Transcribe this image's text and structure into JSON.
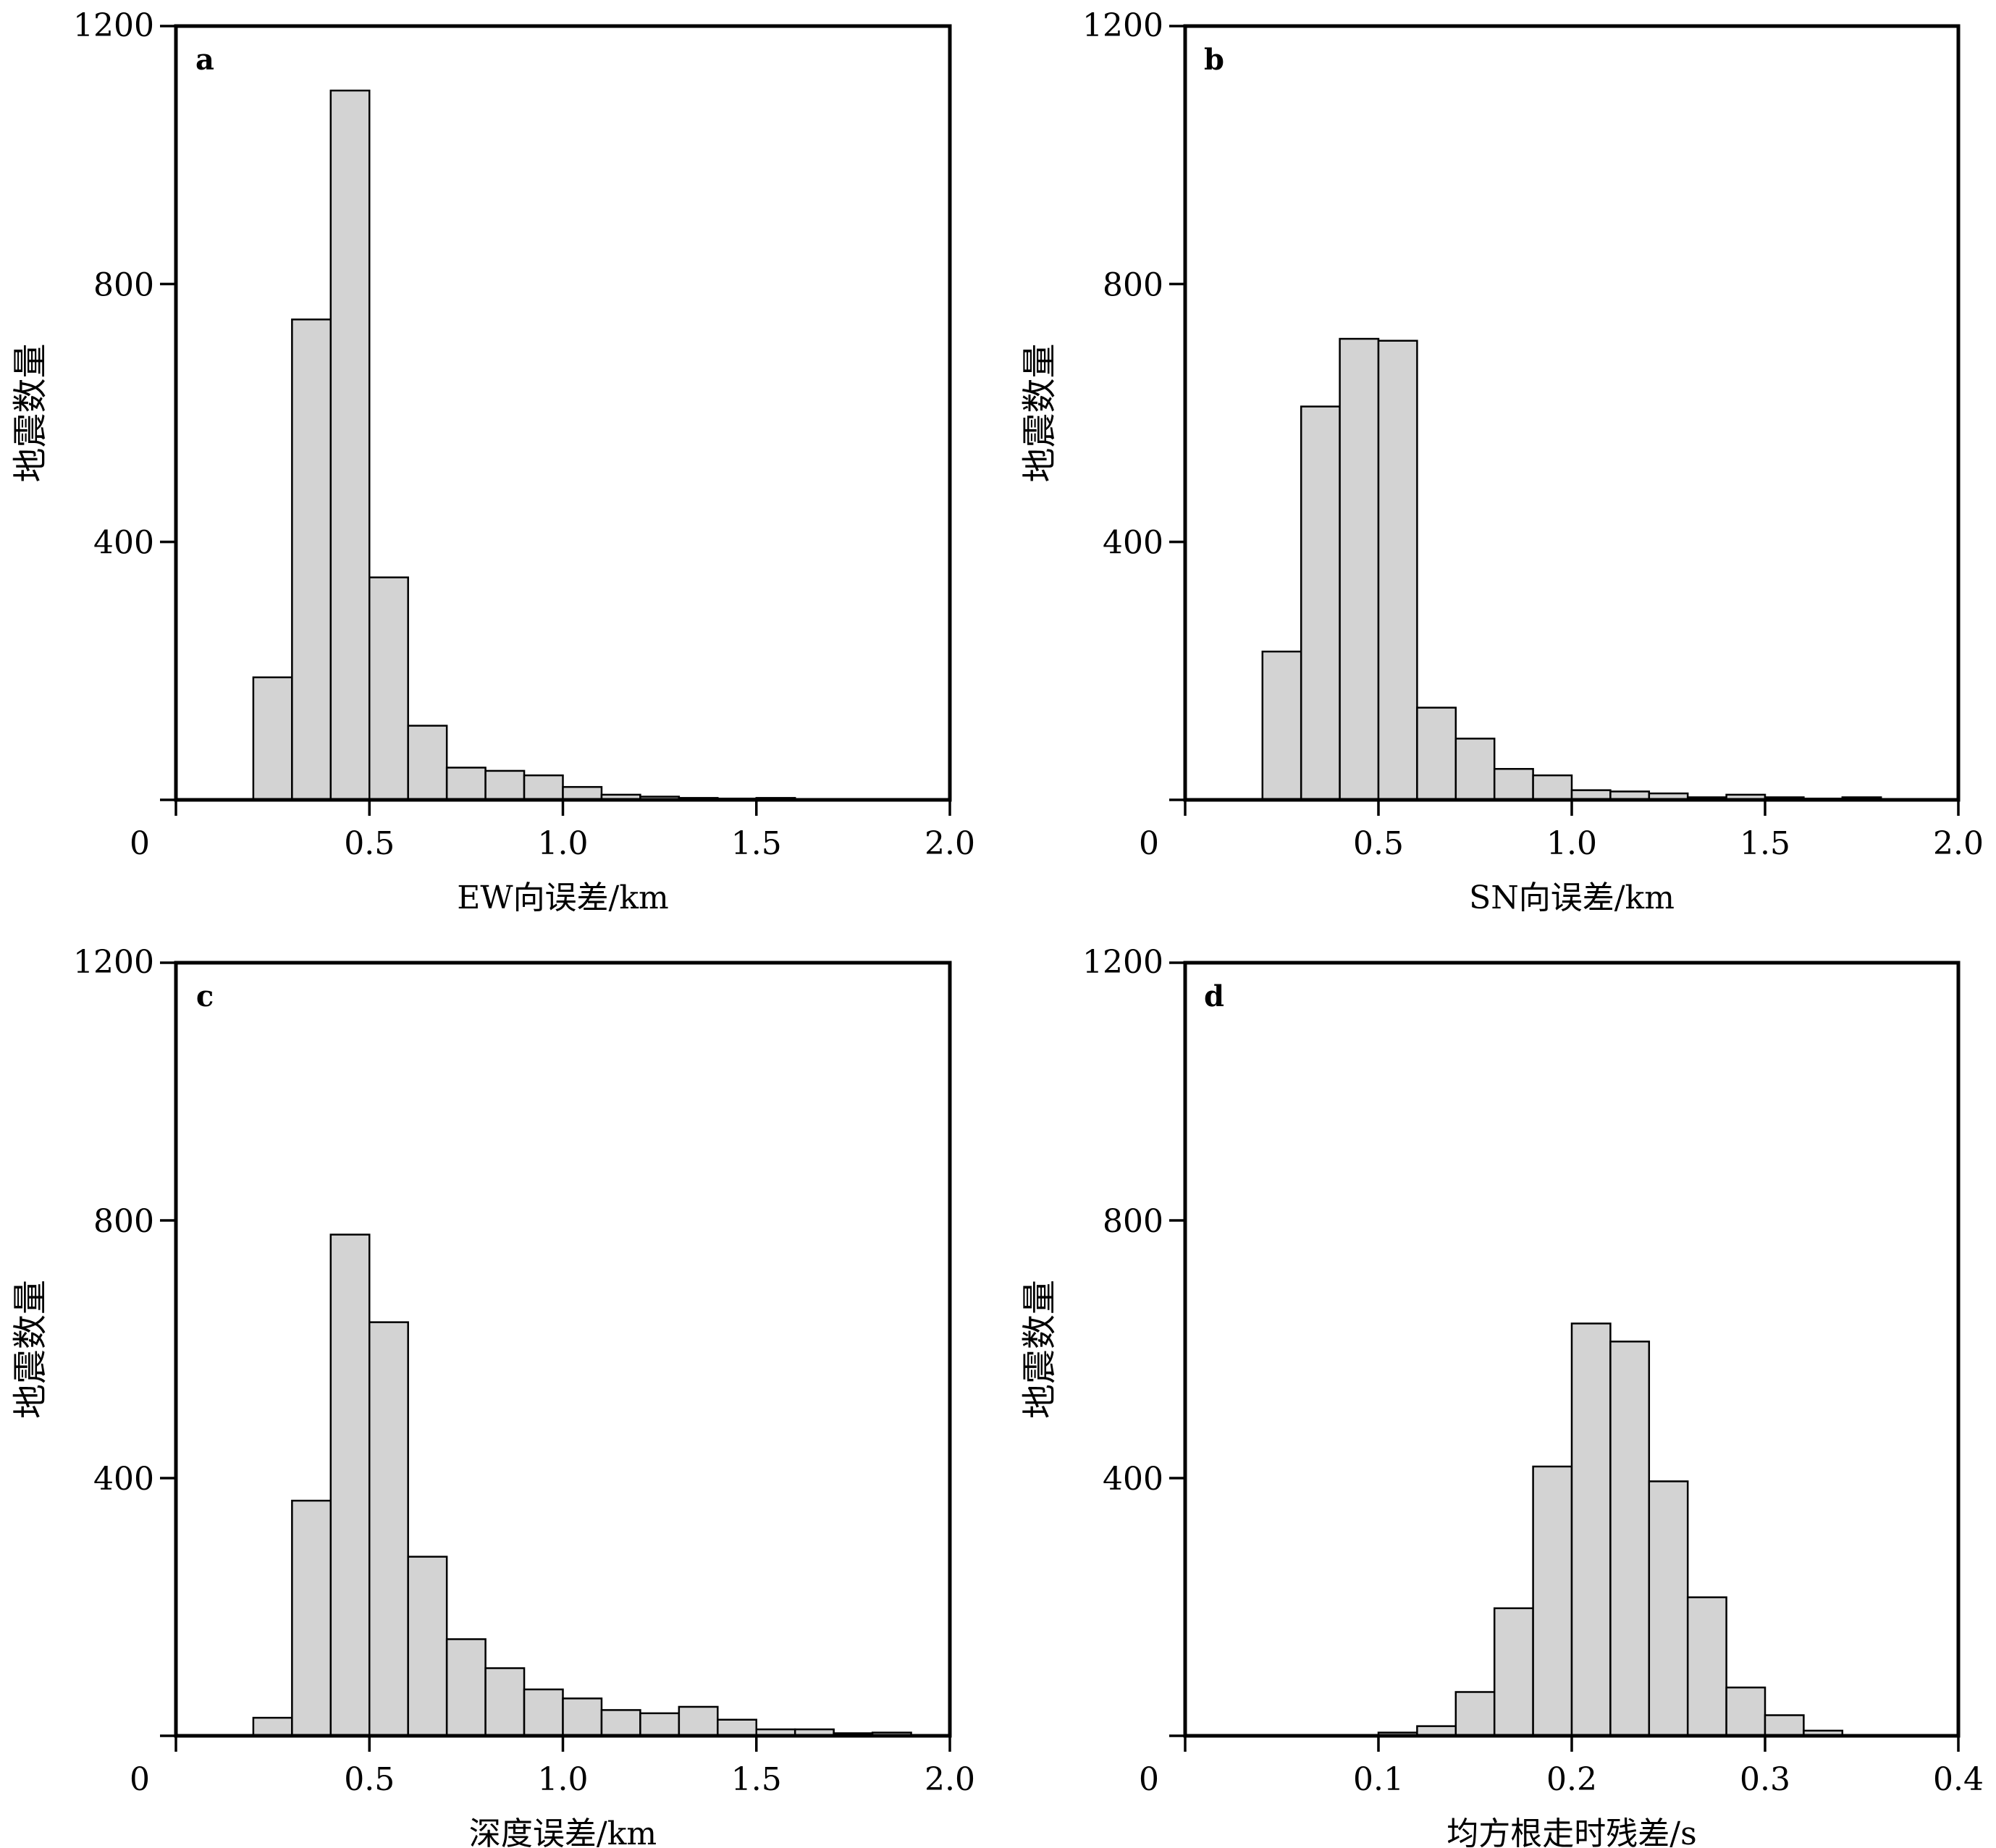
{
  "chart_data": [
    {
      "type": "bar",
      "panel_label": "a",
      "xlabel": "EW向误差/km",
      "ylabel": "地震数量",
      "xlim": [
        0,
        2.0
      ],
      "ylim": [
        0,
        1200
      ],
      "x_ticks": [
        0.5,
        1.0,
        1.5,
        2.0
      ],
      "x_tick_labels": [
        "0.5",
        "1.0",
        "1.5",
        "2.0"
      ],
      "y_ticks": [
        400,
        800,
        1200
      ],
      "y_tick_labels": [
        "400",
        "800",
        "1200"
      ],
      "origin_label": "0",
      "bin_width": 0.1,
      "bins": [
        0.2,
        0.3,
        0.4,
        0.5,
        0.6,
        0.7,
        0.8,
        0.9,
        1.0,
        1.1,
        1.2,
        1.3,
        1.4,
        1.5
      ],
      "values": [
        190,
        745,
        1100,
        345,
        115,
        50,
        45,
        38,
        20,
        8,
        5,
        3,
        2,
        3
      ],
      "bar_color": "#d3d3d3"
    },
    {
      "type": "bar",
      "panel_label": "b",
      "xlabel": "SN向误差/km",
      "ylabel": "地震数量",
      "xlim": [
        0,
        2.0
      ],
      "ylim": [
        0,
        1200
      ],
      "x_ticks": [
        0.5,
        1.0,
        1.5,
        2.0
      ],
      "x_tick_labels": [
        "0.5",
        "1.0",
        "1.5",
        "2.0"
      ],
      "y_ticks": [
        400,
        800,
        1200
      ],
      "y_tick_labels": [
        "400",
        "800",
        "1200"
      ],
      "origin_label": "0",
      "bin_width": 0.1,
      "bins": [
        0.2,
        0.3,
        0.4,
        0.5,
        0.6,
        0.7,
        0.8,
        0.9,
        1.0,
        1.1,
        1.2,
        1.3,
        1.4,
        1.5,
        1.6,
        1.7
      ],
      "values": [
        230,
        610,
        715,
        712,
        143,
        95,
        48,
        38,
        15,
        13,
        10,
        4,
        8,
        4,
        2,
        4
      ],
      "bar_color": "#d3d3d3"
    },
    {
      "type": "bar",
      "panel_label": "c",
      "xlabel": "深度误差/km",
      "ylabel": "地震数量",
      "xlim": [
        0,
        2.0
      ],
      "ylim": [
        0,
        1200
      ],
      "x_ticks": [
        0.5,
        1.0,
        1.5,
        2.0
      ],
      "x_tick_labels": [
        "0.5",
        "1.0",
        "1.5",
        "2.0"
      ],
      "y_ticks": [
        400,
        800,
        1200
      ],
      "y_tick_labels": [
        "400",
        "800",
        "1200"
      ],
      "origin_label": "0",
      "bin_width": 0.1,
      "bins": [
        0.2,
        0.3,
        0.4,
        0.5,
        0.6,
        0.7,
        0.8,
        0.9,
        1.0,
        1.1,
        1.2,
        1.3,
        1.4,
        1.5,
        1.6,
        1.7,
        1.8
      ],
      "values": [
        28,
        365,
        778,
        642,
        278,
        150,
        105,
        72,
        58,
        40,
        35,
        45,
        25,
        10,
        10,
        4,
        5
      ],
      "bar_color": "#d3d3d3"
    },
    {
      "type": "bar",
      "panel_label": "d",
      "xlabel": "均方根走时残差/s",
      "ylabel": "地震数量",
      "xlim": [
        0,
        0.4
      ],
      "ylim": [
        0,
        1200
      ],
      "x_ticks": [
        0.1,
        0.2,
        0.3,
        0.4
      ],
      "x_tick_labels": [
        "0.1",
        "0.2",
        "0.3",
        "0.4"
      ],
      "y_ticks": [
        400,
        800,
        1200
      ],
      "y_tick_labels": [
        "400",
        "800",
        "1200"
      ],
      "origin_label": "0",
      "bin_width": 0.02,
      "bins": [
        0.1,
        0.12,
        0.14,
        0.16,
        0.18,
        0.2,
        0.22,
        0.24,
        0.26,
        0.28,
        0.3,
        0.32
      ],
      "values": [
        5,
        15,
        68,
        198,
        418,
        640,
        612,
        395,
        215,
        75,
        32,
        8
      ],
      "bar_color": "#d3d3d3"
    }
  ]
}
